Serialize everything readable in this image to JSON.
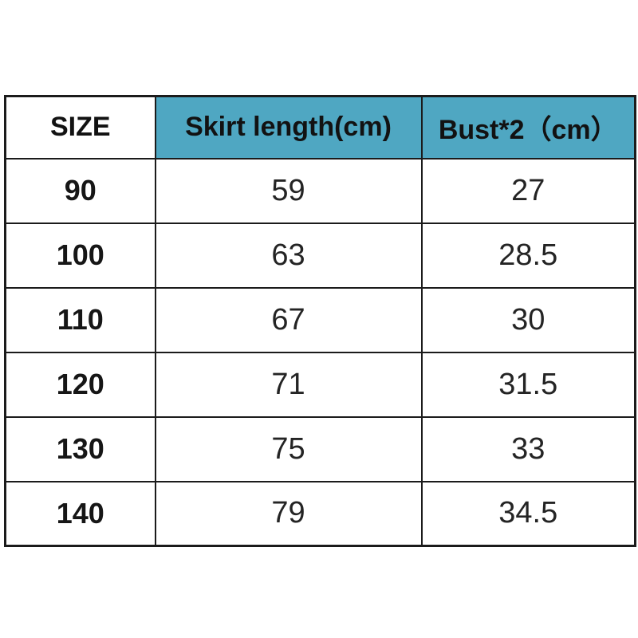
{
  "size_chart": {
    "columns": [
      {
        "key": "size",
        "label": "SIZE"
      },
      {
        "key": "skirt_length",
        "label": "Skirt length(cm)"
      },
      {
        "key": "bust",
        "label": "Bust*2（cm）"
      }
    ],
    "rows": [
      {
        "size": "90",
        "skirt_length": "59",
        "bust": "27"
      },
      {
        "size": "100",
        "skirt_length": "63",
        "bust": "28.5"
      },
      {
        "size": "110",
        "skirt_length": "67",
        "bust": "30"
      },
      {
        "size": "120",
        "skirt_length": "71",
        "bust": "31.5"
      },
      {
        "size": "130",
        "skirt_length": "75",
        "bust": "33"
      },
      {
        "size": "140",
        "skirt_length": "79",
        "bust": "34.5"
      }
    ],
    "colors": {
      "header_teal": "#4fa7c2",
      "border": "#1b1b1b",
      "text": "#1a1a1a",
      "background": "#ffffff"
    }
  },
  "chart_data": {
    "type": "table",
    "title": "",
    "columns": [
      "SIZE",
      "Skirt length(cm)",
      "Bust*2（cm）"
    ],
    "rows": [
      [
        "90",
        "59",
        "27"
      ],
      [
        "100",
        "63",
        "28.5"
      ],
      [
        "110",
        "67",
        "30"
      ],
      [
        "120",
        "71",
        "31.5"
      ],
      [
        "130",
        "75",
        "33"
      ],
      [
        "140",
        "79",
        "34.5"
      ]
    ]
  }
}
